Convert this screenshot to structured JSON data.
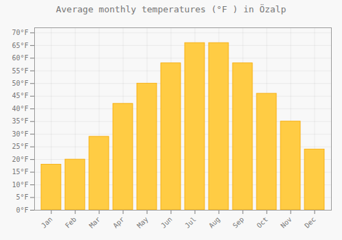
{
  "chart_data": {
    "type": "bar",
    "title": "Average monthly temperatures (°F ) in Özalp",
    "categories": [
      "Jan",
      "Feb",
      "Mar",
      "Apr",
      "May",
      "Jun",
      "Jul",
      "Aug",
      "Sep",
      "Oct",
      "Nov",
      "Dec"
    ],
    "values": [
      18,
      20,
      29,
      42,
      50,
      58,
      66,
      66,
      58,
      46,
      35,
      24
    ],
    "color": "#FFCC44",
    "ylim": [
      0,
      72
    ],
    "yticks": [
      {
        "value": 0,
        "label": "0°F"
      },
      {
        "value": 5,
        "label": "5°F"
      },
      {
        "value": 10,
        "label": "10°F"
      },
      {
        "value": 15,
        "label": "15°F"
      },
      {
        "value": 20,
        "label": "20°F"
      },
      {
        "value": 25,
        "label": "25°F"
      },
      {
        "value": 30,
        "label": "30°F"
      },
      {
        "value": 35,
        "label": "35°F"
      },
      {
        "value": 40,
        "label": "40°F"
      },
      {
        "value": 45,
        "label": "45°F"
      },
      {
        "value": 50,
        "label": "50°F"
      },
      {
        "value": 55,
        "label": "55°F"
      },
      {
        "value": 60,
        "label": "60°F"
      },
      {
        "value": 65,
        "label": "65°F"
      },
      {
        "value": 70,
        "label": "70°F"
      }
    ],
    "grid": true
  }
}
